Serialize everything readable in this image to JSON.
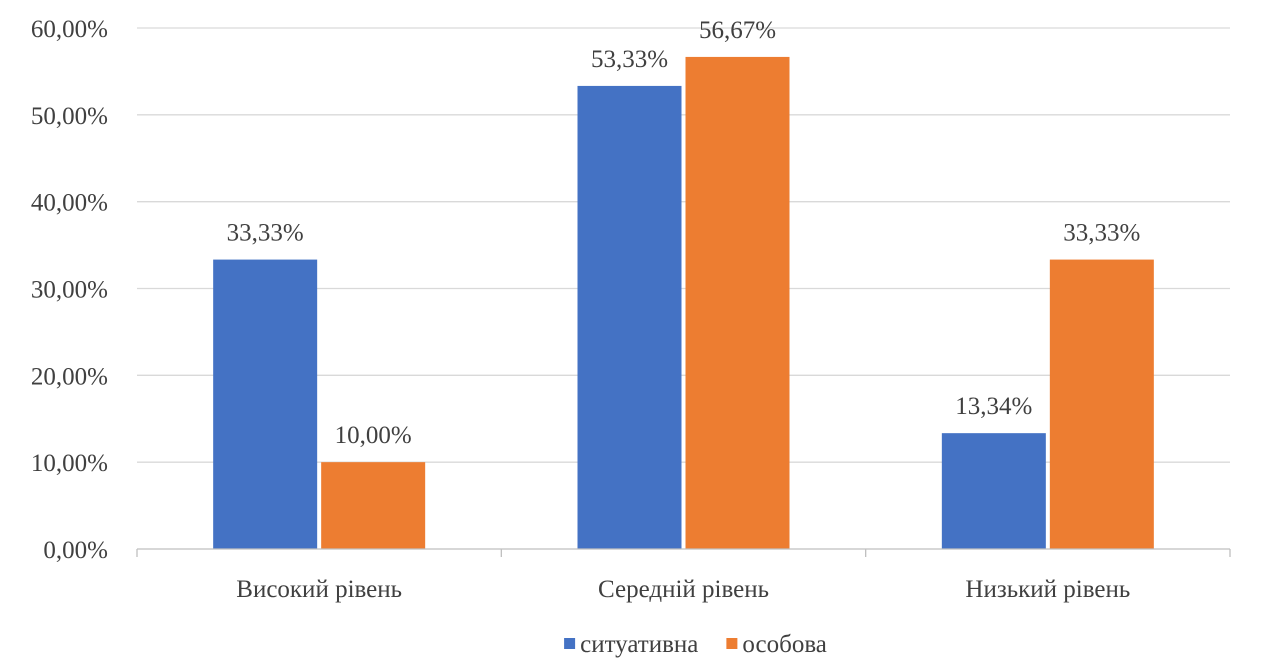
{
  "chart_data": {
    "type": "bar",
    "categories": [
      "Високий рівень",
      "Середній рівень",
      "Низький рівень"
    ],
    "series": [
      {
        "name": "ситуативна",
        "color": "#4472C4",
        "values": [
          33.33,
          53.33,
          13.34
        ],
        "labels": [
          "33,33%",
          "53,33%",
          "13,34%"
        ]
      },
      {
        "name": "особова",
        "color": "#ED7D31",
        "values": [
          10.0,
          56.67,
          33.33
        ],
        "labels": [
          "10,00%",
          "56,67%",
          "33,33%"
        ]
      }
    ],
    "ylim": [
      0,
      60
    ],
    "yticks": [
      0,
      10,
      20,
      30,
      40,
      50,
      60
    ],
    "ytick_labels": [
      "0,00%",
      "10,00%",
      "20,00%",
      "30,00%",
      "40,00%",
      "50,00%",
      "60,00%"
    ],
    "grid": true,
    "legend_position": "bottom-center"
  }
}
